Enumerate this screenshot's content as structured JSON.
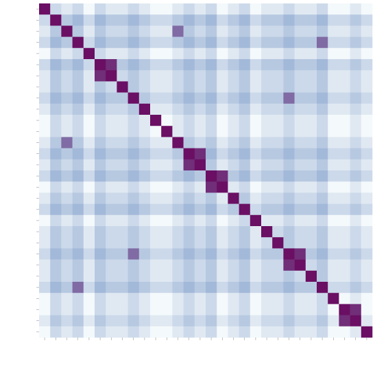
{
  "chart_data": {
    "type": "heatmap",
    "zlim": [
      0,
      10
    ],
    "colors": [
      "#f4f9fb",
      "#8fa9d0",
      "#6a0f63"
    ],
    "matrix": [
      [
        10,
        2,
        1,
        2,
        0,
        2,
        1,
        1,
        2,
        1,
        0,
        0,
        1,
        2,
        1,
        2,
        0,
        1,
        2,
        0,
        1,
        1,
        2,
        1,
        1,
        2,
        0,
        0,
        1,
        0
      ],
      [
        2,
        10,
        3,
        4,
        2,
        4,
        3,
        3,
        4,
        3,
        2,
        2,
        3,
        4,
        3,
        4,
        2,
        3,
        4,
        2,
        3,
        3,
        4,
        3,
        3,
        4,
        2,
        2,
        3,
        2
      ],
      [
        1,
        3,
        10,
        3,
        1,
        3,
        2,
        2,
        3,
        2,
        1,
        1,
        7,
        3,
        2,
        3,
        1,
        2,
        3,
        1,
        2,
        2,
        3,
        2,
        2,
        3,
        1,
        1,
        2,
        1
      ],
      [
        2,
        4,
        3,
        10,
        2,
        4,
        3,
        3,
        4,
        3,
        2,
        2,
        3,
        4,
        3,
        4,
        2,
        3,
        4,
        2,
        3,
        3,
        4,
        3,
        3,
        7,
        2,
        2,
        3,
        2
      ],
      [
        0,
        2,
        1,
        2,
        10,
        2,
        1,
        1,
        2,
        1,
        0,
        0,
        1,
        2,
        1,
        2,
        0,
        1,
        2,
        0,
        1,
        1,
        2,
        1,
        1,
        2,
        0,
        0,
        1,
        0
      ],
      [
        2,
        4,
        3,
        4,
        2,
        10,
        9,
        3,
        4,
        3,
        2,
        2,
        3,
        4,
        3,
        4,
        2,
        3,
        4,
        2,
        3,
        3,
        4,
        3,
        3,
        4,
        2,
        2,
        3,
        2
      ],
      [
        1,
        3,
        2,
        3,
        1,
        9,
        10,
        2,
        3,
        2,
        1,
        1,
        2,
        3,
        2,
        3,
        1,
        2,
        3,
        1,
        2,
        2,
        3,
        2,
        2,
        3,
        1,
        1,
        2,
        1
      ],
      [
        1,
        3,
        2,
        3,
        1,
        3,
        2,
        10,
        3,
        2,
        1,
        1,
        2,
        3,
        2,
        3,
        1,
        2,
        3,
        1,
        2,
        2,
        3,
        2,
        2,
        3,
        1,
        1,
        2,
        1
      ],
      [
        2,
        4,
        3,
        4,
        2,
        4,
        3,
        3,
        10,
        3,
        2,
        2,
        3,
        4,
        3,
        4,
        2,
        3,
        4,
        2,
        3,
        3,
        7,
        3,
        3,
        4,
        2,
        2,
        3,
        2
      ],
      [
        1,
        3,
        2,
        3,
        1,
        3,
        2,
        2,
        3,
        10,
        1,
        1,
        2,
        3,
        2,
        3,
        1,
        2,
        3,
        1,
        2,
        2,
        3,
        2,
        2,
        3,
        1,
        1,
        2,
        1
      ],
      [
        0,
        2,
        1,
        2,
        0,
        2,
        1,
        1,
        2,
        1,
        10,
        0,
        1,
        2,
        1,
        2,
        0,
        1,
        2,
        0,
        1,
        1,
        2,
        1,
        1,
        2,
        0,
        0,
        1,
        0
      ],
      [
        0,
        2,
        1,
        2,
        0,
        2,
        1,
        1,
        2,
        1,
        0,
        10,
        1,
        2,
        1,
        2,
        0,
        1,
        2,
        0,
        1,
        1,
        2,
        1,
        1,
        2,
        0,
        0,
        1,
        0
      ],
      [
        1,
        3,
        7,
        3,
        1,
        3,
        2,
        2,
        3,
        2,
        1,
        1,
        10,
        3,
        2,
        3,
        1,
        2,
        3,
        1,
        2,
        2,
        3,
        2,
        2,
        3,
        1,
        1,
        2,
        1
      ],
      [
        2,
        4,
        3,
        4,
        2,
        4,
        3,
        3,
        4,
        3,
        2,
        2,
        3,
        10,
        9,
        4,
        2,
        3,
        4,
        2,
        3,
        3,
        4,
        3,
        3,
        4,
        2,
        2,
        3,
        2
      ],
      [
        1,
        3,
        2,
        3,
        1,
        3,
        2,
        2,
        3,
        2,
        1,
        1,
        2,
        9,
        10,
        3,
        1,
        2,
        3,
        1,
        2,
        2,
        3,
        2,
        2,
        3,
        1,
        1,
        2,
        1
      ],
      [
        2,
        4,
        3,
        4,
        2,
        4,
        3,
        3,
        4,
        3,
        2,
        2,
        3,
        4,
        3,
        10,
        9,
        3,
        4,
        2,
        3,
        3,
        4,
        3,
        3,
        4,
        2,
        2,
        3,
        2
      ],
      [
        0,
        2,
        1,
        2,
        0,
        2,
        1,
        1,
        2,
        1,
        0,
        0,
        1,
        2,
        1,
        9,
        10,
        1,
        2,
        0,
        1,
        1,
        2,
        1,
        1,
        2,
        0,
        0,
        1,
        0
      ],
      [
        1,
        3,
        2,
        3,
        1,
        3,
        2,
        2,
        3,
        2,
        1,
        1,
        2,
        3,
        2,
        3,
        1,
        10,
        3,
        1,
        2,
        2,
        3,
        2,
        2,
        3,
        1,
        1,
        2,
        1
      ],
      [
        2,
        4,
        3,
        4,
        2,
        4,
        3,
        3,
        4,
        3,
        2,
        2,
        3,
        4,
        3,
        4,
        2,
        3,
        10,
        2,
        3,
        3,
        4,
        3,
        3,
        4,
        2,
        2,
        3,
        2
      ],
      [
        0,
        2,
        1,
        2,
        0,
        2,
        1,
        1,
        2,
        1,
        0,
        0,
        1,
        2,
        1,
        2,
        0,
        1,
        2,
        10,
        1,
        1,
        2,
        1,
        1,
        2,
        0,
        0,
        1,
        0
      ],
      [
        1,
        3,
        2,
        3,
        1,
        3,
        2,
        2,
        3,
        2,
        1,
        1,
        2,
        3,
        2,
        3,
        1,
        2,
        3,
        1,
        10,
        2,
        3,
        2,
        2,
        3,
        1,
        1,
        2,
        1
      ],
      [
        1,
        3,
        2,
        3,
        1,
        3,
        2,
        2,
        3,
        2,
        1,
        1,
        2,
        3,
        2,
        3,
        1,
        2,
        3,
        1,
        2,
        10,
        3,
        2,
        2,
        3,
        1,
        1,
        2,
        1
      ],
      [
        2,
        4,
        3,
        4,
        2,
        4,
        3,
        3,
        7,
        3,
        2,
        2,
        3,
        4,
        3,
        4,
        2,
        3,
        4,
        2,
        3,
        3,
        10,
        9,
        3,
        4,
        2,
        2,
        3,
        2
      ],
      [
        1,
        3,
        2,
        3,
        1,
        3,
        2,
        2,
        3,
        2,
        1,
        1,
        2,
        3,
        2,
        3,
        1,
        2,
        3,
        1,
        2,
        2,
        9,
        10,
        2,
        3,
        1,
        1,
        2,
        1
      ],
      [
        1,
        3,
        2,
        3,
        1,
        3,
        2,
        2,
        3,
        2,
        1,
        1,
        2,
        3,
        2,
        3,
        1,
        2,
        3,
        1,
        2,
        2,
        3,
        2,
        10,
        3,
        1,
        1,
        2,
        1
      ],
      [
        2,
        4,
        3,
        7,
        2,
        4,
        3,
        3,
        4,
        3,
        2,
        2,
        3,
        4,
        3,
        4,
        2,
        3,
        4,
        2,
        3,
        3,
        4,
        3,
        3,
        10,
        2,
        2,
        3,
        2
      ],
      [
        0,
        2,
        1,
        2,
        0,
        2,
        1,
        1,
        2,
        1,
        0,
        0,
        1,
        2,
        1,
        2,
        0,
        1,
        2,
        0,
        1,
        1,
        2,
        1,
        1,
        2,
        10,
        0,
        1,
        0
      ],
      [
        0,
        2,
        1,
        2,
        0,
        2,
        1,
        1,
        2,
        1,
        0,
        0,
        1,
        2,
        1,
        2,
        0,
        1,
        2,
        0,
        1,
        1,
        2,
        1,
        1,
        2,
        0,
        10,
        9,
        0
      ],
      [
        1,
        3,
        2,
        3,
        1,
        3,
        2,
        2,
        3,
        2,
        1,
        1,
        2,
        3,
        2,
        3,
        1,
        2,
        3,
        1,
        2,
        2,
        3,
        2,
        2,
        3,
        1,
        9,
        10,
        1
      ],
      [
        0,
        2,
        1,
        2,
        0,
        2,
        1,
        1,
        2,
        1,
        0,
        0,
        1,
        2,
        1,
        2,
        0,
        1,
        2,
        0,
        1,
        1,
        2,
        1,
        1,
        2,
        0,
        0,
        1,
        10
      ]
    ]
  }
}
